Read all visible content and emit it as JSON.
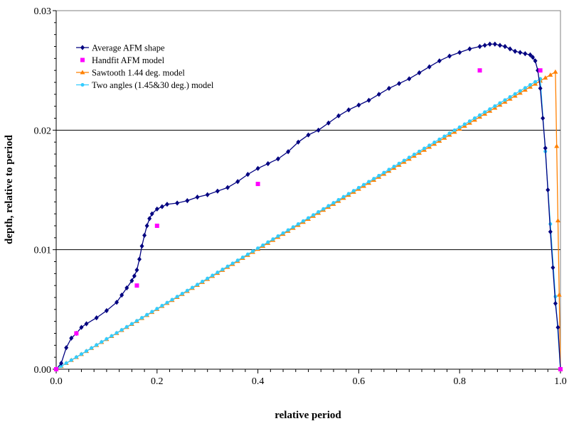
{
  "chart_data": {
    "type": "line",
    "xlabel": "relative period",
    "ylabel": "depth, relative to period",
    "xlim": [
      0,
      1
    ],
    "ylim": [
      0,
      0.03
    ],
    "x_ticks": [
      "0.0",
      "0.2",
      "0.4",
      "0.6",
      "0.8",
      "1.0"
    ],
    "y_ticks": [
      "0.00",
      "0.01",
      "0.02",
      "0.03"
    ],
    "grid": "horizontal major gridlines",
    "legend_position": "top-left",
    "series": [
      {
        "name": "Average AFM shape",
        "color": "#000080",
        "marker": "diamond",
        "x": [
          0.0,
          0.01,
          0.02,
          0.03,
          0.04,
          0.05,
          0.06,
          0.08,
          0.1,
          0.12,
          0.13,
          0.14,
          0.15,
          0.155,
          0.16,
          0.165,
          0.17,
          0.175,
          0.18,
          0.185,
          0.19,
          0.2,
          0.21,
          0.22,
          0.24,
          0.26,
          0.28,
          0.3,
          0.32,
          0.34,
          0.36,
          0.38,
          0.4,
          0.42,
          0.44,
          0.46,
          0.48,
          0.5,
          0.52,
          0.54,
          0.56,
          0.58,
          0.6,
          0.62,
          0.64,
          0.66,
          0.68,
          0.7,
          0.72,
          0.74,
          0.76,
          0.78,
          0.8,
          0.82,
          0.84,
          0.85,
          0.86,
          0.87,
          0.88,
          0.89,
          0.9,
          0.91,
          0.92,
          0.93,
          0.94,
          0.945,
          0.95,
          0.955,
          0.96,
          0.965,
          0.97,
          0.975,
          0.98,
          0.985,
          0.99,
          0.995,
          1.0
        ],
        "y": [
          0.0,
          0.0005,
          0.0018,
          0.0026,
          0.003,
          0.0035,
          0.0038,
          0.0043,
          0.0049,
          0.0056,
          0.0062,
          0.0068,
          0.0074,
          0.0078,
          0.0083,
          0.0092,
          0.0103,
          0.0112,
          0.012,
          0.0126,
          0.013,
          0.0134,
          0.0136,
          0.0138,
          0.0139,
          0.0141,
          0.0144,
          0.0146,
          0.0149,
          0.0152,
          0.0157,
          0.0163,
          0.0168,
          0.0172,
          0.0176,
          0.0182,
          0.019,
          0.0196,
          0.02,
          0.0206,
          0.0212,
          0.0217,
          0.0221,
          0.0225,
          0.023,
          0.0235,
          0.0239,
          0.0243,
          0.0248,
          0.0253,
          0.0258,
          0.0262,
          0.0265,
          0.0268,
          0.027,
          0.0271,
          0.0272,
          0.0272,
          0.0271,
          0.027,
          0.0268,
          0.0266,
          0.0265,
          0.0264,
          0.0263,
          0.0261,
          0.0258,
          0.025,
          0.0235,
          0.021,
          0.0185,
          0.015,
          0.0115,
          0.0085,
          0.0055,
          0.0035,
          0.0
        ]
      },
      {
        "name": "Handfit AFM model",
        "color": "#ff00ff",
        "marker": "square",
        "line": false,
        "x": [
          0.0,
          0.04,
          0.16,
          0.2,
          0.4,
          0.84,
          0.96,
          1.0
        ],
        "y": [
          0.0,
          0.003,
          0.007,
          0.012,
          0.0155,
          0.025,
          0.025,
          0.0
        ]
      },
      {
        "name": "Sawtooth 1.44 deg. model",
        "color": "#ff8000",
        "marker": "triangle",
        "x_step": 0.01,
        "slope": 0.02513,
        "peak_x": 0.99,
        "end_x": 1.0
      },
      {
        "name": "Two angles (1.45&30 deg.) model",
        "color": "#33ccff",
        "marker": "circle",
        "x_step": 0.01,
        "slope": 0.02531,
        "peak_x": 0.955,
        "end_x": 1.0
      }
    ]
  }
}
